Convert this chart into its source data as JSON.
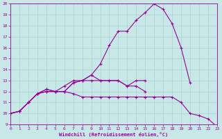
{
  "x": [
    0,
    1,
    2,
    3,
    4,
    5,
    6,
    7,
    8,
    9,
    10,
    11,
    12,
    13,
    14,
    15,
    16,
    17,
    18,
    19,
    20,
    21,
    22,
    23
  ],
  "line1_x": [
    0,
    1,
    2,
    3,
    4,
    5,
    6,
    7,
    8,
    9,
    10,
    11,
    12,
    13,
    14,
    15,
    16,
    17,
    18,
    19,
    20
  ],
  "line1_y": [
    10,
    10.2,
    11,
    11.8,
    12.2,
    12.0,
    12.0,
    12.8,
    13.0,
    13.5,
    14.5,
    16.2,
    17.5,
    17.5,
    18.5,
    19.2,
    20.0,
    19.5,
    18.2,
    16.0,
    12.8
  ],
  "line2_x": [
    0,
    1,
    2,
    3,
    4,
    5,
    6,
    7,
    8,
    9,
    10,
    11,
    12,
    13,
    14,
    15
  ],
  "line2_y": [
    10,
    10.2,
    11.0,
    11.8,
    12.0,
    12.0,
    12.5,
    13.0,
    13.0,
    13.0,
    13.0,
    13.0,
    13.0,
    12.5,
    12.5,
    12.0
  ],
  "line3_x": [
    0,
    1,
    2,
    3,
    4,
    5,
    6,
    7,
    8,
    9,
    10,
    11,
    12,
    13,
    14,
    15
  ],
  "line3_y": [
    10,
    10.2,
    11.0,
    11.8,
    12.2,
    12.0,
    12.0,
    12.8,
    13.0,
    13.5,
    13.0,
    13.0,
    13.0,
    12.5,
    13.0,
    13.0
  ],
  "line4_x": [
    0,
    1,
    2,
    3,
    4,
    5,
    6,
    7,
    8,
    9,
    10,
    11,
    12,
    13,
    14,
    15,
    16,
    17,
    18,
    19,
    20,
    21,
    22,
    23
  ],
  "line4_y": [
    10,
    10.2,
    11.0,
    11.8,
    12.0,
    12.0,
    12.0,
    11.8,
    11.5,
    11.5,
    11.5,
    11.5,
    11.5,
    11.5,
    11.5,
    11.5,
    11.5,
    11.5,
    11.5,
    11.0,
    10.0,
    9.8,
    9.5,
    8.8
  ],
  "line_color": "#990099",
  "bg_color": "#c8e8e8",
  "grid_color": "#a8d0d0",
  "xlabel": "Windchill (Refroidissement éolien,°C)",
  "ylim": [
    9,
    20
  ],
  "xlim": [
    0,
    23
  ],
  "yticks": [
    9,
    10,
    11,
    12,
    13,
    14,
    15,
    16,
    17,
    18,
    19,
    20
  ],
  "xticks": [
    0,
    1,
    2,
    3,
    4,
    5,
    6,
    7,
    8,
    9,
    10,
    11,
    12,
    13,
    14,
    15,
    16,
    17,
    18,
    19,
    20,
    21,
    22,
    23
  ]
}
